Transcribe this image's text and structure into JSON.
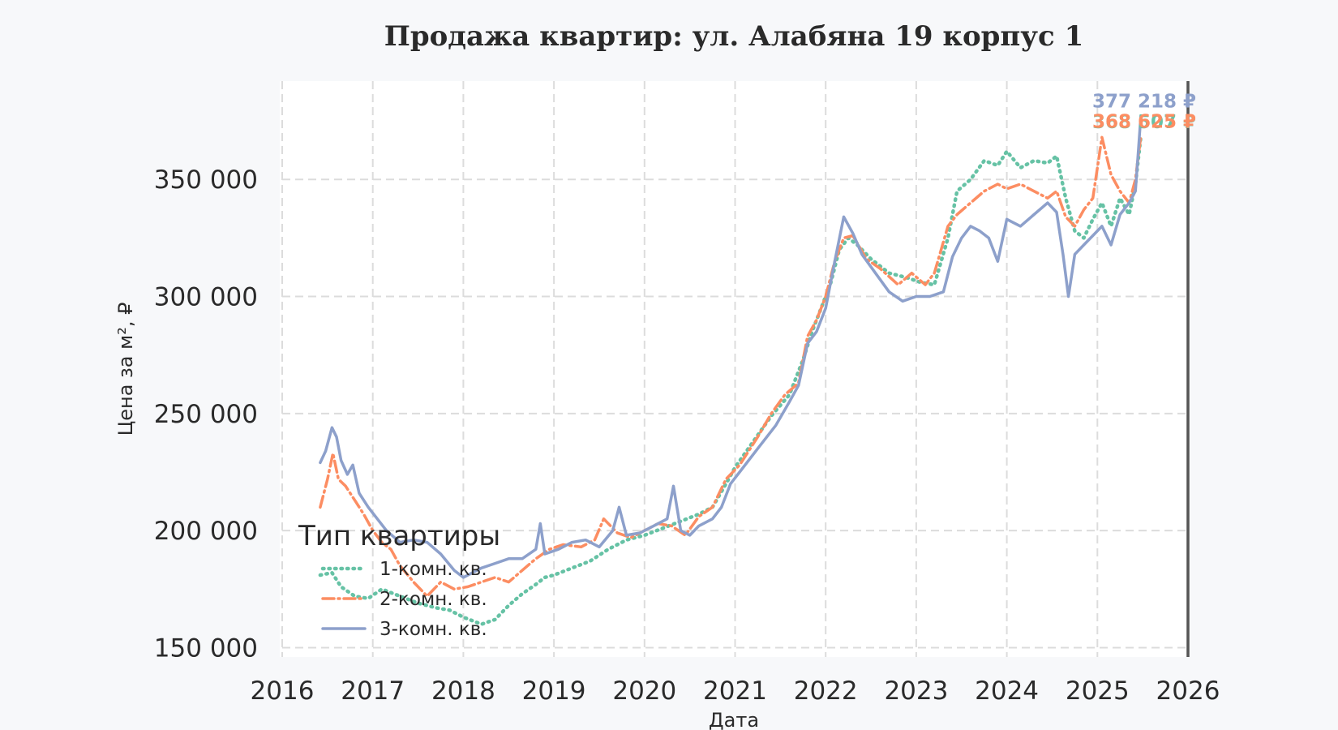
{
  "chart_data": {
    "type": "line",
    "title": "Продажа квартир: ул. Алабяна 19 корпус 1",
    "xlabel": "Дата",
    "ylabel": "Цена за м², ₽",
    "xlim": [
      2016.0,
      2026.0
    ],
    "ylim": [
      146000,
      392000
    ],
    "x_ticks": [
      "2016",
      "2017",
      "2018",
      "2019",
      "2020",
      "2021",
      "2022",
      "2023",
      "2024",
      "2025",
      "2026"
    ],
    "x_tick_values": [
      2016,
      2017,
      2018,
      2019,
      2020,
      2021,
      2022,
      2023,
      2024,
      2025,
      2026
    ],
    "y_ticks": [
      "150 000",
      "200 000",
      "250 000",
      "300 000",
      "350 000"
    ],
    "y_tick_values": [
      150000,
      200000,
      250000,
      300000,
      350000
    ],
    "grid": true,
    "legend": {
      "title": "Тип квартиры",
      "placement": "lower-left"
    },
    "series": [
      {
        "name": "1-комн. кв.",
        "color": "#66c2a5",
        "style": "dotted",
        "end_label": "368 507 ₽",
        "points": [
          [
            2016.42,
            181000
          ],
          [
            2016.55,
            182000
          ],
          [
            2016.65,
            176000
          ],
          [
            2016.8,
            172000
          ],
          [
            2016.95,
            171000
          ],
          [
            2017.1,
            175000
          ],
          [
            2017.3,
            172000
          ],
          [
            2017.5,
            169000
          ],
          [
            2017.7,
            167000
          ],
          [
            2017.85,
            166000
          ],
          [
            2018.0,
            163000
          ],
          [
            2018.2,
            160000
          ],
          [
            2018.35,
            162000
          ],
          [
            2018.5,
            168000
          ],
          [
            2018.65,
            173000
          ],
          [
            2018.8,
            177000
          ],
          [
            2018.9,
            180000
          ],
          [
            2019.0,
            181000
          ],
          [
            2019.2,
            184000
          ],
          [
            2019.4,
            187000
          ],
          [
            2019.6,
            192000
          ],
          [
            2019.8,
            196000
          ],
          [
            2020.0,
            198000
          ],
          [
            2020.2,
            201000
          ],
          [
            2020.4,
            204000
          ],
          [
            2020.6,
            207000
          ],
          [
            2020.75,
            210000
          ],
          [
            2020.9,
            220000
          ],
          [
            2021.0,
            227000
          ],
          [
            2021.2,
            238000
          ],
          [
            2021.4,
            249000
          ],
          [
            2021.6,
            258000
          ],
          [
            2021.75,
            273000
          ],
          [
            2021.85,
            285000
          ],
          [
            2021.95,
            295000
          ],
          [
            2022.05,
            305000
          ],
          [
            2022.15,
            320000
          ],
          [
            2022.25,
            325000
          ],
          [
            2022.35,
            322000
          ],
          [
            2022.5,
            316000
          ],
          [
            2022.7,
            310000
          ],
          [
            2022.9,
            308000
          ],
          [
            2023.05,
            306000
          ],
          [
            2023.2,
            305000
          ],
          [
            2023.35,
            325000
          ],
          [
            2023.45,
            345000
          ],
          [
            2023.6,
            350000
          ],
          [
            2023.75,
            358000
          ],
          [
            2023.9,
            356000
          ],
          [
            2024.0,
            362000
          ],
          [
            2024.15,
            355000
          ],
          [
            2024.3,
            358000
          ],
          [
            2024.45,
            357000
          ],
          [
            2024.55,
            360000
          ],
          [
            2024.65,
            342000
          ],
          [
            2024.75,
            328000
          ],
          [
            2024.85,
            325000
          ],
          [
            2024.95,
            333000
          ],
          [
            2025.05,
            340000
          ],
          [
            2025.15,
            330000
          ],
          [
            2025.25,
            342000
          ],
          [
            2025.35,
            335000
          ],
          [
            2025.42,
            348000
          ],
          [
            2025.48,
            368507
          ]
        ]
      },
      {
        "name": "2-комн. кв.",
        "color": "#fc8d62",
        "style": "dashdot",
        "end_label": "368 625 ₽",
        "points": [
          [
            2016.42,
            210000
          ],
          [
            2016.5,
            222000
          ],
          [
            2016.56,
            233000
          ],
          [
            2016.62,
            222000
          ],
          [
            2016.7,
            219000
          ],
          [
            2016.8,
            213000
          ],
          [
            2016.9,
            207000
          ],
          [
            2017.0,
            200000
          ],
          [
            2017.1,
            195000
          ],
          [
            2017.2,
            192000
          ],
          [
            2017.3,
            185000
          ],
          [
            2017.45,
            178000
          ],
          [
            2017.6,
            172000
          ],
          [
            2017.75,
            178000
          ],
          [
            2017.9,
            175000
          ],
          [
            2018.05,
            176000
          ],
          [
            2018.2,
            178000
          ],
          [
            2018.35,
            180000
          ],
          [
            2018.5,
            178000
          ],
          [
            2018.65,
            183000
          ],
          [
            2018.8,
            188000
          ],
          [
            2018.95,
            192000
          ],
          [
            2019.1,
            194000
          ],
          [
            2019.3,
            193000
          ],
          [
            2019.45,
            196000
          ],
          [
            2019.55,
            205000
          ],
          [
            2019.7,
            199000
          ],
          [
            2019.85,
            197000
          ],
          [
            2020.0,
            200000
          ],
          [
            2020.15,
            203000
          ],
          [
            2020.3,
            202000
          ],
          [
            2020.45,
            198000
          ],
          [
            2020.6,
            206000
          ],
          [
            2020.75,
            210000
          ],
          [
            2020.9,
            222000
          ],
          [
            2021.05,
            228000
          ],
          [
            2021.25,
            240000
          ],
          [
            2021.4,
            250000
          ],
          [
            2021.55,
            258000
          ],
          [
            2021.7,
            263000
          ],
          [
            2021.8,
            283000
          ],
          [
            2021.9,
            290000
          ],
          [
            2022.0,
            300000
          ],
          [
            2022.1,
            315000
          ],
          [
            2022.2,
            325000
          ],
          [
            2022.3,
            326000
          ],
          [
            2022.45,
            316000
          ],
          [
            2022.6,
            312000
          ],
          [
            2022.8,
            305000
          ],
          [
            2022.95,
            310000
          ],
          [
            2023.1,
            305000
          ],
          [
            2023.2,
            310000
          ],
          [
            2023.35,
            330000
          ],
          [
            2023.45,
            335000
          ],
          [
            2023.6,
            340000
          ],
          [
            2023.75,
            345000
          ],
          [
            2023.9,
            348000
          ],
          [
            2024.0,
            346000
          ],
          [
            2024.15,
            348000
          ],
          [
            2024.3,
            345000
          ],
          [
            2024.45,
            342000
          ],
          [
            2024.55,
            345000
          ],
          [
            2024.65,
            334000
          ],
          [
            2024.75,
            330000
          ],
          [
            2024.85,
            337000
          ],
          [
            2024.95,
            342000
          ],
          [
            2025.05,
            368000
          ],
          [
            2025.15,
            352000
          ],
          [
            2025.25,
            345000
          ],
          [
            2025.35,
            340000
          ],
          [
            2025.42,
            350000
          ],
          [
            2025.48,
            368625
          ]
        ]
      },
      {
        "name": "3-комн. кв.",
        "color": "#8da0cb",
        "style": "solid",
        "end_label": "377 218 ₽",
        "points": [
          [
            2016.42,
            229000
          ],
          [
            2016.48,
            234000
          ],
          [
            2016.55,
            244000
          ],
          [
            2016.6,
            240000
          ],
          [
            2016.65,
            230000
          ],
          [
            2016.72,
            224000
          ],
          [
            2016.78,
            228000
          ],
          [
            2016.85,
            216000
          ],
          [
            2016.95,
            210000
          ],
          [
            2017.05,
            205000
          ],
          [
            2017.15,
            200000
          ],
          [
            2017.3,
            195000
          ],
          [
            2017.45,
            196000
          ],
          [
            2017.6,
            195000
          ],
          [
            2017.75,
            190000
          ],
          [
            2017.9,
            183000
          ],
          [
            2018.0,
            180000
          ],
          [
            2018.2,
            184000
          ],
          [
            2018.35,
            186000
          ],
          [
            2018.5,
            188000
          ],
          [
            2018.65,
            188000
          ],
          [
            2018.8,
            192000
          ],
          [
            2018.85,
            203000
          ],
          [
            2018.9,
            190000
          ],
          [
            2019.05,
            192000
          ],
          [
            2019.2,
            195000
          ],
          [
            2019.35,
            196000
          ],
          [
            2019.5,
            193000
          ],
          [
            2019.65,
            200000
          ],
          [
            2019.72,
            210000
          ],
          [
            2019.8,
            198000
          ],
          [
            2019.95,
            199000
          ],
          [
            2020.1,
            202000
          ],
          [
            2020.25,
            205000
          ],
          [
            2020.32,
            219000
          ],
          [
            2020.4,
            200000
          ],
          [
            2020.5,
            198000
          ],
          [
            2020.6,
            202000
          ],
          [
            2020.75,
            205000
          ],
          [
            2020.85,
            210000
          ],
          [
            2020.95,
            220000
          ],
          [
            2021.05,
            225000
          ],
          [
            2021.25,
            235000
          ],
          [
            2021.45,
            245000
          ],
          [
            2021.6,
            255000
          ],
          [
            2021.7,
            262000
          ],
          [
            2021.8,
            280000
          ],
          [
            2021.9,
            285000
          ],
          [
            2022.0,
            295000
          ],
          [
            2022.1,
            315000
          ],
          [
            2022.2,
            334000
          ],
          [
            2022.3,
            327000
          ],
          [
            2022.4,
            318000
          ],
          [
            2022.55,
            310000
          ],
          [
            2022.7,
            302000
          ],
          [
            2022.85,
            298000
          ],
          [
            2023.0,
            300000
          ],
          [
            2023.15,
            300000
          ],
          [
            2023.3,
            302000
          ],
          [
            2023.4,
            317000
          ],
          [
            2023.5,
            325000
          ],
          [
            2023.6,
            330000
          ],
          [
            2023.7,
            328000
          ],
          [
            2023.8,
            325000
          ],
          [
            2023.9,
            315000
          ],
          [
            2024.0,
            333000
          ],
          [
            2024.15,
            330000
          ],
          [
            2024.3,
            335000
          ],
          [
            2024.45,
            340000
          ],
          [
            2024.55,
            336000
          ],
          [
            2024.62,
            318000
          ],
          [
            2024.68,
            300000
          ],
          [
            2024.75,
            318000
          ],
          [
            2024.85,
            322000
          ],
          [
            2024.95,
            326000
          ],
          [
            2025.05,
            330000
          ],
          [
            2025.15,
            322000
          ],
          [
            2025.25,
            335000
          ],
          [
            2025.35,
            340000
          ],
          [
            2025.42,
            345000
          ],
          [
            2025.48,
            377218
          ]
        ]
      }
    ]
  }
}
